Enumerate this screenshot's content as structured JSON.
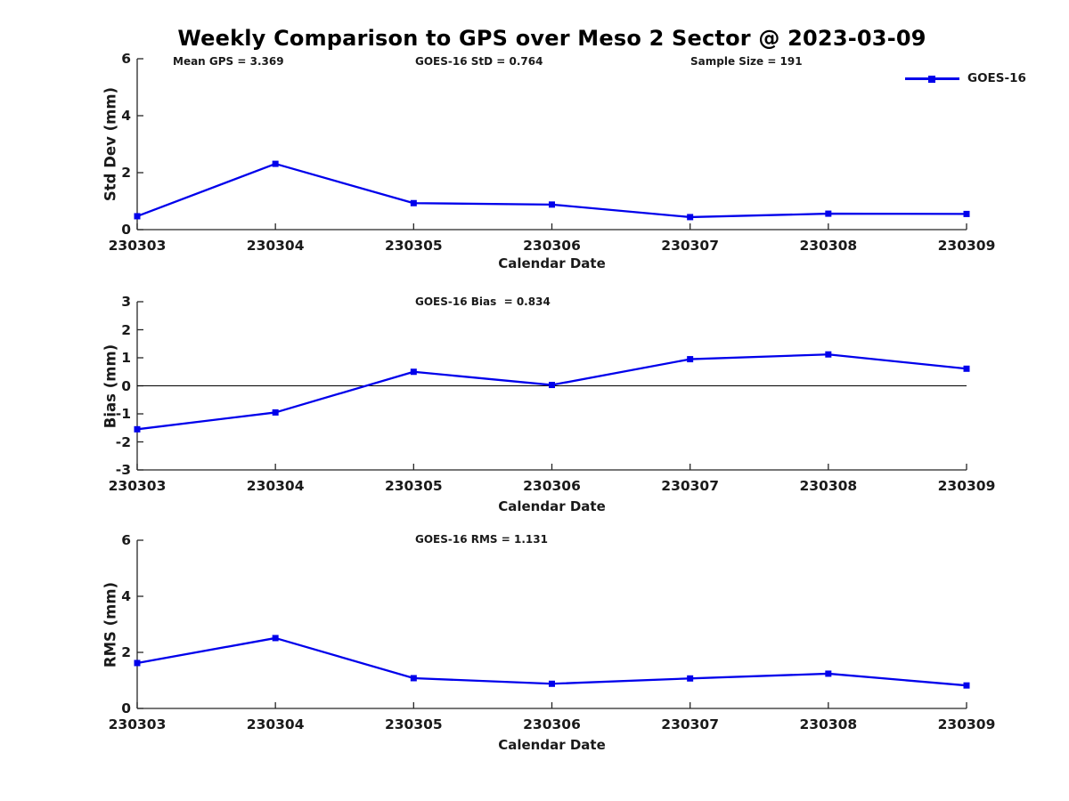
{
  "title": "Weekly Comparison to GPS over Meso 2 Sector @ 2023-03-09",
  "legend": {
    "label": "GOES-16",
    "color": "#0000EB"
  },
  "annotations": {
    "mean_gps": "Mean GPS = 3.369",
    "std": "GOES-16 StD = 0.764",
    "sample_size": "Sample Size = 191",
    "bias": "GOES-16 Bias  = 0.834",
    "rms": "GOES-16 RMS = 1.131"
  },
  "chart_data": [
    {
      "type": "line",
      "x": [
        "230303",
        "230304",
        "230305",
        "230306",
        "230307",
        "230308",
        "230309"
      ],
      "series": [
        {
          "name": "GOES-16",
          "values": [
            0.47,
            2.31,
            0.93,
            0.88,
            0.44,
            0.56,
            0.55
          ],
          "color": "#0000EB",
          "marker": "square"
        }
      ],
      "ylabel": "Std Dev (mm)",
      "xlabel": "Calendar Date",
      "ylim": [
        0,
        6
      ],
      "yticks": [
        0,
        2,
        4,
        6
      ],
      "zero_line": false,
      "grid": false,
      "legend_position": "top-right",
      "annotations": [
        "Mean GPS = 3.369",
        "GOES-16 StD = 0.764",
        "Sample Size = 191"
      ]
    },
    {
      "type": "line",
      "x": [
        "230303",
        "230304",
        "230305",
        "230306",
        "230307",
        "230308",
        "230309"
      ],
      "series": [
        {
          "name": "GOES-16",
          "values": [
            -1.55,
            -0.95,
            0.5,
            0.03,
            0.95,
            1.12,
            0.61
          ],
          "color": "#0000EB",
          "marker": "square"
        }
      ],
      "ylabel": "Bias (mm)",
      "xlabel": "Calendar Date",
      "ylim": [
        -3,
        3
      ],
      "yticks": [
        -3,
        -2,
        -1,
        0,
        1,
        2,
        3
      ],
      "zero_line": true,
      "grid": false,
      "annotations": [
        "GOES-16 Bias  = 0.834"
      ]
    },
    {
      "type": "line",
      "x": [
        "230303",
        "230304",
        "230305",
        "230306",
        "230307",
        "230308",
        "230309"
      ],
      "series": [
        {
          "name": "GOES-16",
          "values": [
            1.62,
            2.51,
            1.08,
            0.88,
            1.07,
            1.24,
            0.82
          ],
          "color": "#0000EB",
          "marker": "square"
        }
      ],
      "ylabel": "RMS (mm)",
      "xlabel": "Calendar Date",
      "ylim": [
        0,
        6
      ],
      "yticks": [
        0,
        2,
        4,
        6
      ],
      "zero_line": false,
      "grid": false,
      "annotations": [
        "GOES-16 RMS = 1.131"
      ]
    }
  ]
}
